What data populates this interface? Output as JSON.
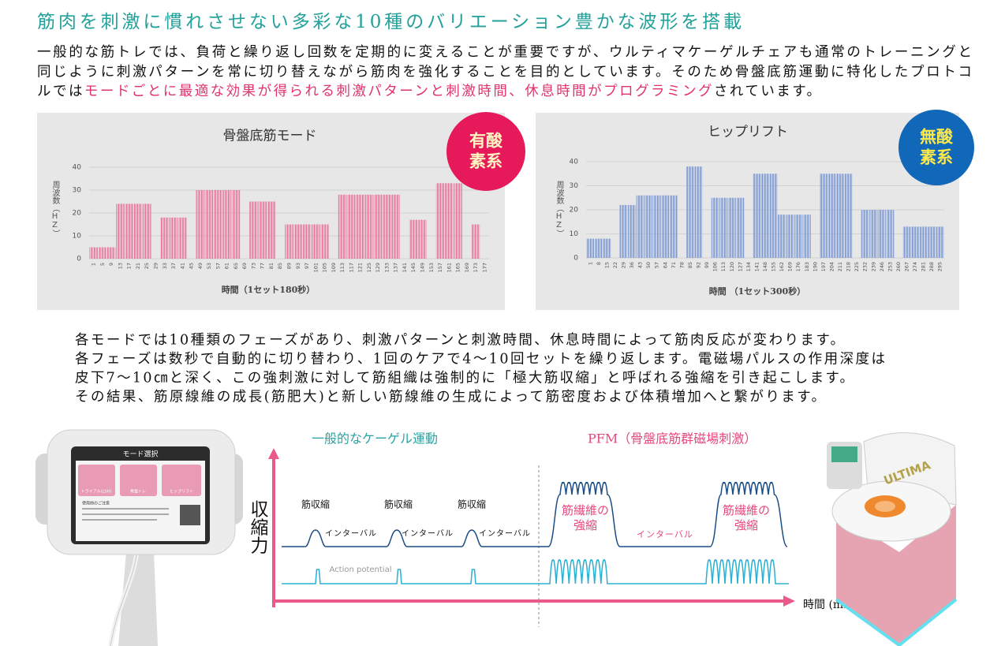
{
  "title": "筋肉を刺激に慣れさせない多彩な10種のバリエーション豊かな波形を搭載",
  "intro": {
    "lines": [
      "一般的な筋トレでは、負荷と繰り返し回数を定期的に変えることが重要ですが、ウルティマケーゲルチェアも通常のトレーニングと",
      "同じように刺激パターンを常に切り替えながら筋肉を強化することを目的としています。そのため骨盤底筋運動に特化したプロトコ"
    ],
    "last_line": {
      "before": "ルでは",
      "highlight": "モードごとに最適な効果が得られる刺激パターンと刺激時間、休息時間がプログラミング",
      "after": "されています。"
    }
  },
  "chart_data": [
    {
      "type": "bar",
      "title": "骨盤底筋モード",
      "y_label": "周波数（HZ）",
      "x_label": "時間（1セット180秒）",
      "categories": [
        "1",
        "5",
        "9",
        "13",
        "17",
        "21",
        "25",
        "29",
        "33",
        "37",
        "41",
        "45",
        "49",
        "53",
        "57",
        "61",
        "65",
        "69",
        "73",
        "77",
        "81",
        "85",
        "89",
        "93",
        "97",
        "101",
        "105",
        "109",
        "113",
        "117",
        "121",
        "125",
        "129",
        "133",
        "137",
        "141",
        "145",
        "149",
        "153",
        "157",
        "161",
        "165",
        "169",
        "173",
        "177"
      ],
      "values": [
        5,
        5,
        5,
        24,
        24,
        24,
        24,
        0,
        18,
        18,
        18,
        0,
        30,
        30,
        30,
        30,
        30,
        0,
        25,
        25,
        25,
        0,
        15,
        15,
        15,
        15,
        15,
        0,
        28,
        28,
        28,
        28,
        28,
        28,
        28,
        0,
        17,
        17,
        0,
        33,
        33,
        33,
        0,
        15,
        0
      ],
      "color": "#e8789f",
      "ylim": [
        0,
        40
      ],
      "yticks": [
        0,
        10,
        20,
        30,
        40
      ],
      "grid": true,
      "badge": {
        "lines": [
          "有酸",
          "素系"
        ],
        "color": "#e6195a",
        "text_color": "#fff4c2"
      }
    },
    {
      "type": "bar",
      "title": "ヒップリフト",
      "y_label": "周波数（HZ）",
      "x_label": "時間 （1セット300秒）",
      "categories": [
        "1",
        "8",
        "15",
        "22",
        "29",
        "36",
        "43",
        "50",
        "57",
        "64",
        "71",
        "78",
        "85",
        "92",
        "99",
        "106",
        "113",
        "120",
        "127",
        "134",
        "141",
        "148",
        "155",
        "162",
        "169",
        "176",
        "183",
        "190",
        "197",
        "204",
        "211",
        "218",
        "225",
        "232",
        "239",
        "246",
        "253",
        "260",
        "267",
        "274",
        "281",
        "288",
        "295"
      ],
      "values": [
        8,
        8,
        8,
        0,
        22,
        22,
        26,
        26,
        26,
        26,
        26,
        0,
        38,
        38,
        0,
        25,
        25,
        25,
        25,
        0,
        35,
        35,
        35,
        18,
        18,
        18,
        18,
        0,
        35,
        35,
        35,
        35,
        0,
        20,
        20,
        20,
        20,
        0,
        13,
        13,
        13,
        13,
        13
      ],
      "color": "#7f9bd4",
      "ylim": [
        0,
        40
      ],
      "yticks": [
        0,
        10,
        20,
        30,
        40
      ],
      "grid": true,
      "badge": {
        "lines": [
          "無酸",
          "素系"
        ],
        "color": "#1167b8",
        "text_color": "#ffe94a"
      }
    }
  ],
  "body": {
    "lines": [
      "各モードでは10種類のフェーズがあり、刺激パターンと刺激時間、休息時間によって筋肉反応が変わります。",
      "各フェーズは数秒で自動的に切り替わり、1回のケアで4〜10回セットを繰り返します。電磁場パルスの作用深度は",
      "皮下7〜10㎝と深く、この強刺激に対して筋組織は強制的に「極大筋収縮」と呼ばれる強縮を引き起こします。",
      "その結果、筋原線維の成長(筋肥大)と新しい筋線維の生成によって筋密度および体積増加へと繋がります。"
    ]
  },
  "device": {
    "title": "モード選択",
    "modes": [
      "トライアル(LSH)",
      "骨盤トレ",
      "ヒップリフト"
    ],
    "notice": "使用前のご注意"
  },
  "diagram": {
    "left_heading": "一般的なケーゲル運動",
    "right_heading": "PFM（骨盤底筋群磁場刺激）",
    "y_label": "収縮力",
    "x_label": "時間 (ms)",
    "contraction_labels": [
      "筋収縮",
      "筋収縮",
      "筋収縮"
    ],
    "interval_labels": [
      "インターバル",
      "インターバル",
      "インターバル"
    ],
    "action_potential": "Action potential",
    "tetanus_labels": [
      [
        "筋繊維の",
        "強縮"
      ],
      [
        "筋繊維の",
        "強縮"
      ]
    ],
    "pfm_interval": "インターバル"
  },
  "chair": {
    "brand": "ULTIMA"
  }
}
